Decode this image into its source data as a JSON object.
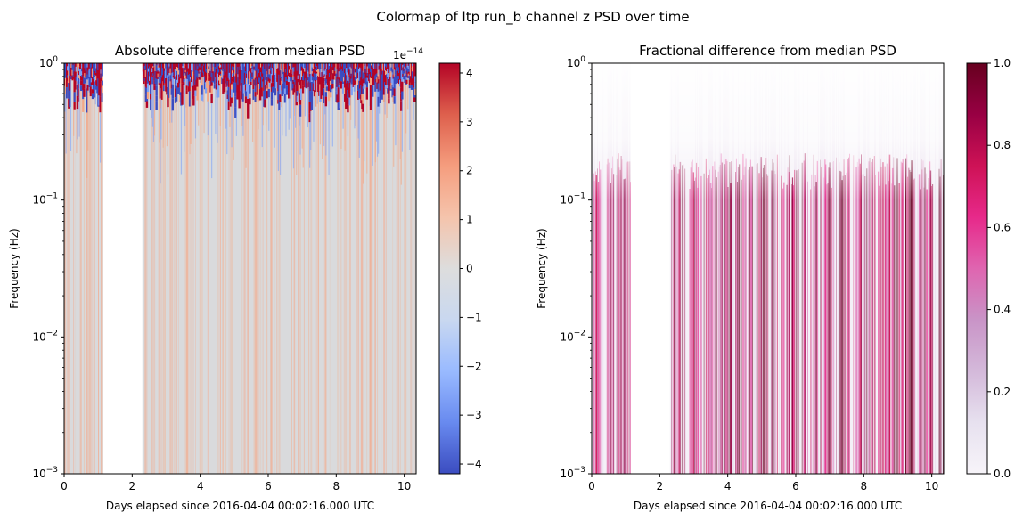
{
  "figure": {
    "suptitle": "Colormap of ltp run_b channel z PSD over time"
  },
  "chart_data": [
    {
      "type": "heatmap",
      "title": "Absolute difference from median PSD",
      "xlabel": "Days elapsed since 2016-04-04 00:02:16.000 UTC",
      "ylabel": "Frequency (Hz)",
      "xlim": [
        0,
        10.35
      ],
      "ylim": [
        0.001,
        1
      ],
      "yscale": "log",
      "xticks": [
        0,
        2,
        4,
        6,
        8,
        10
      ],
      "xtick_labels": [
        "0",
        "2",
        "4",
        "6",
        "8",
        "10"
      ],
      "yticks": [
        0.001,
        0.01,
        0.1,
        1
      ],
      "ytick_mantissa": [
        "10",
        "10",
        "10",
        "10"
      ],
      "ytick_exponent": [
        "−3",
        "−2",
        "−1",
        "0"
      ],
      "data_gap_days": [
        1.15,
        2.3
      ],
      "colormap": "coolwarm",
      "colorbar": {
        "range": [
          -4.2,
          4.2
        ],
        "ticks": [
          -4,
          -3,
          -2,
          -1,
          0,
          1,
          2,
          3,
          4
        ],
        "tick_labels": [
          "−4",
          "−3",
          "−2",
          "−1",
          "0",
          "1",
          "2",
          "3",
          "4"
        ],
        "offset_mantissa": "1e",
        "offset_exponent": "−14",
        "colors": [
          "#3b4cc0",
          "#688aef",
          "#99baff",
          "#c9d8f0",
          "#dddddd",
          "#f5c4ac",
          "#f59d7e",
          "#de604d",
          "#b40426"
        ]
      },
      "background_color": "#d9dadc",
      "stripe_colors": [
        "#f4aa8c",
        "#e9c0ac"
      ],
      "band_colors": [
        "#b40426",
        "#3b4cc0",
        "#7ea2f6",
        "#f4a582"
      ]
    },
    {
      "type": "heatmap",
      "title": "Fractional difference from median PSD",
      "xlabel": "Days elapsed since 2016-04-04 00:02:16.000 UTC",
      "ylabel": "Frequency (Hz)",
      "xlim": [
        0,
        10.35
      ],
      "ylim": [
        0.001,
        1
      ],
      "yscale": "log",
      "xticks": [
        0,
        2,
        4,
        6,
        8,
        10
      ],
      "xtick_labels": [
        "0",
        "2",
        "4",
        "6",
        "8",
        "10"
      ],
      "yticks": [
        0.001,
        0.01,
        0.1,
        1
      ],
      "ytick_mantissa": [
        "10",
        "10",
        "10",
        "10"
      ],
      "ytick_exponent": [
        "−3",
        "−2",
        "−1",
        "0"
      ],
      "data_gap_days": [
        1.15,
        2.3
      ],
      "colormap": "PuRd",
      "colorbar": {
        "range": [
          0,
          1
        ],
        "ticks": [
          0,
          0.2,
          0.4,
          0.6,
          0.8,
          1.0
        ],
        "tick_labels": [
          "0.0",
          "0.2",
          "0.4",
          "0.6",
          "0.8",
          "1.0"
        ],
        "colors": [
          "#f7f4f9",
          "#e7e1ef",
          "#d4b9da",
          "#c994c7",
          "#df65b0",
          "#e7298a",
          "#ce1256",
          "#980043",
          "#67001f"
        ]
      },
      "background_color": "#f4f0f7",
      "stripe_colors": [
        "#67001f",
        "#980043",
        "#ce1256",
        "#e7298a",
        "#df65b0"
      ]
    }
  ]
}
